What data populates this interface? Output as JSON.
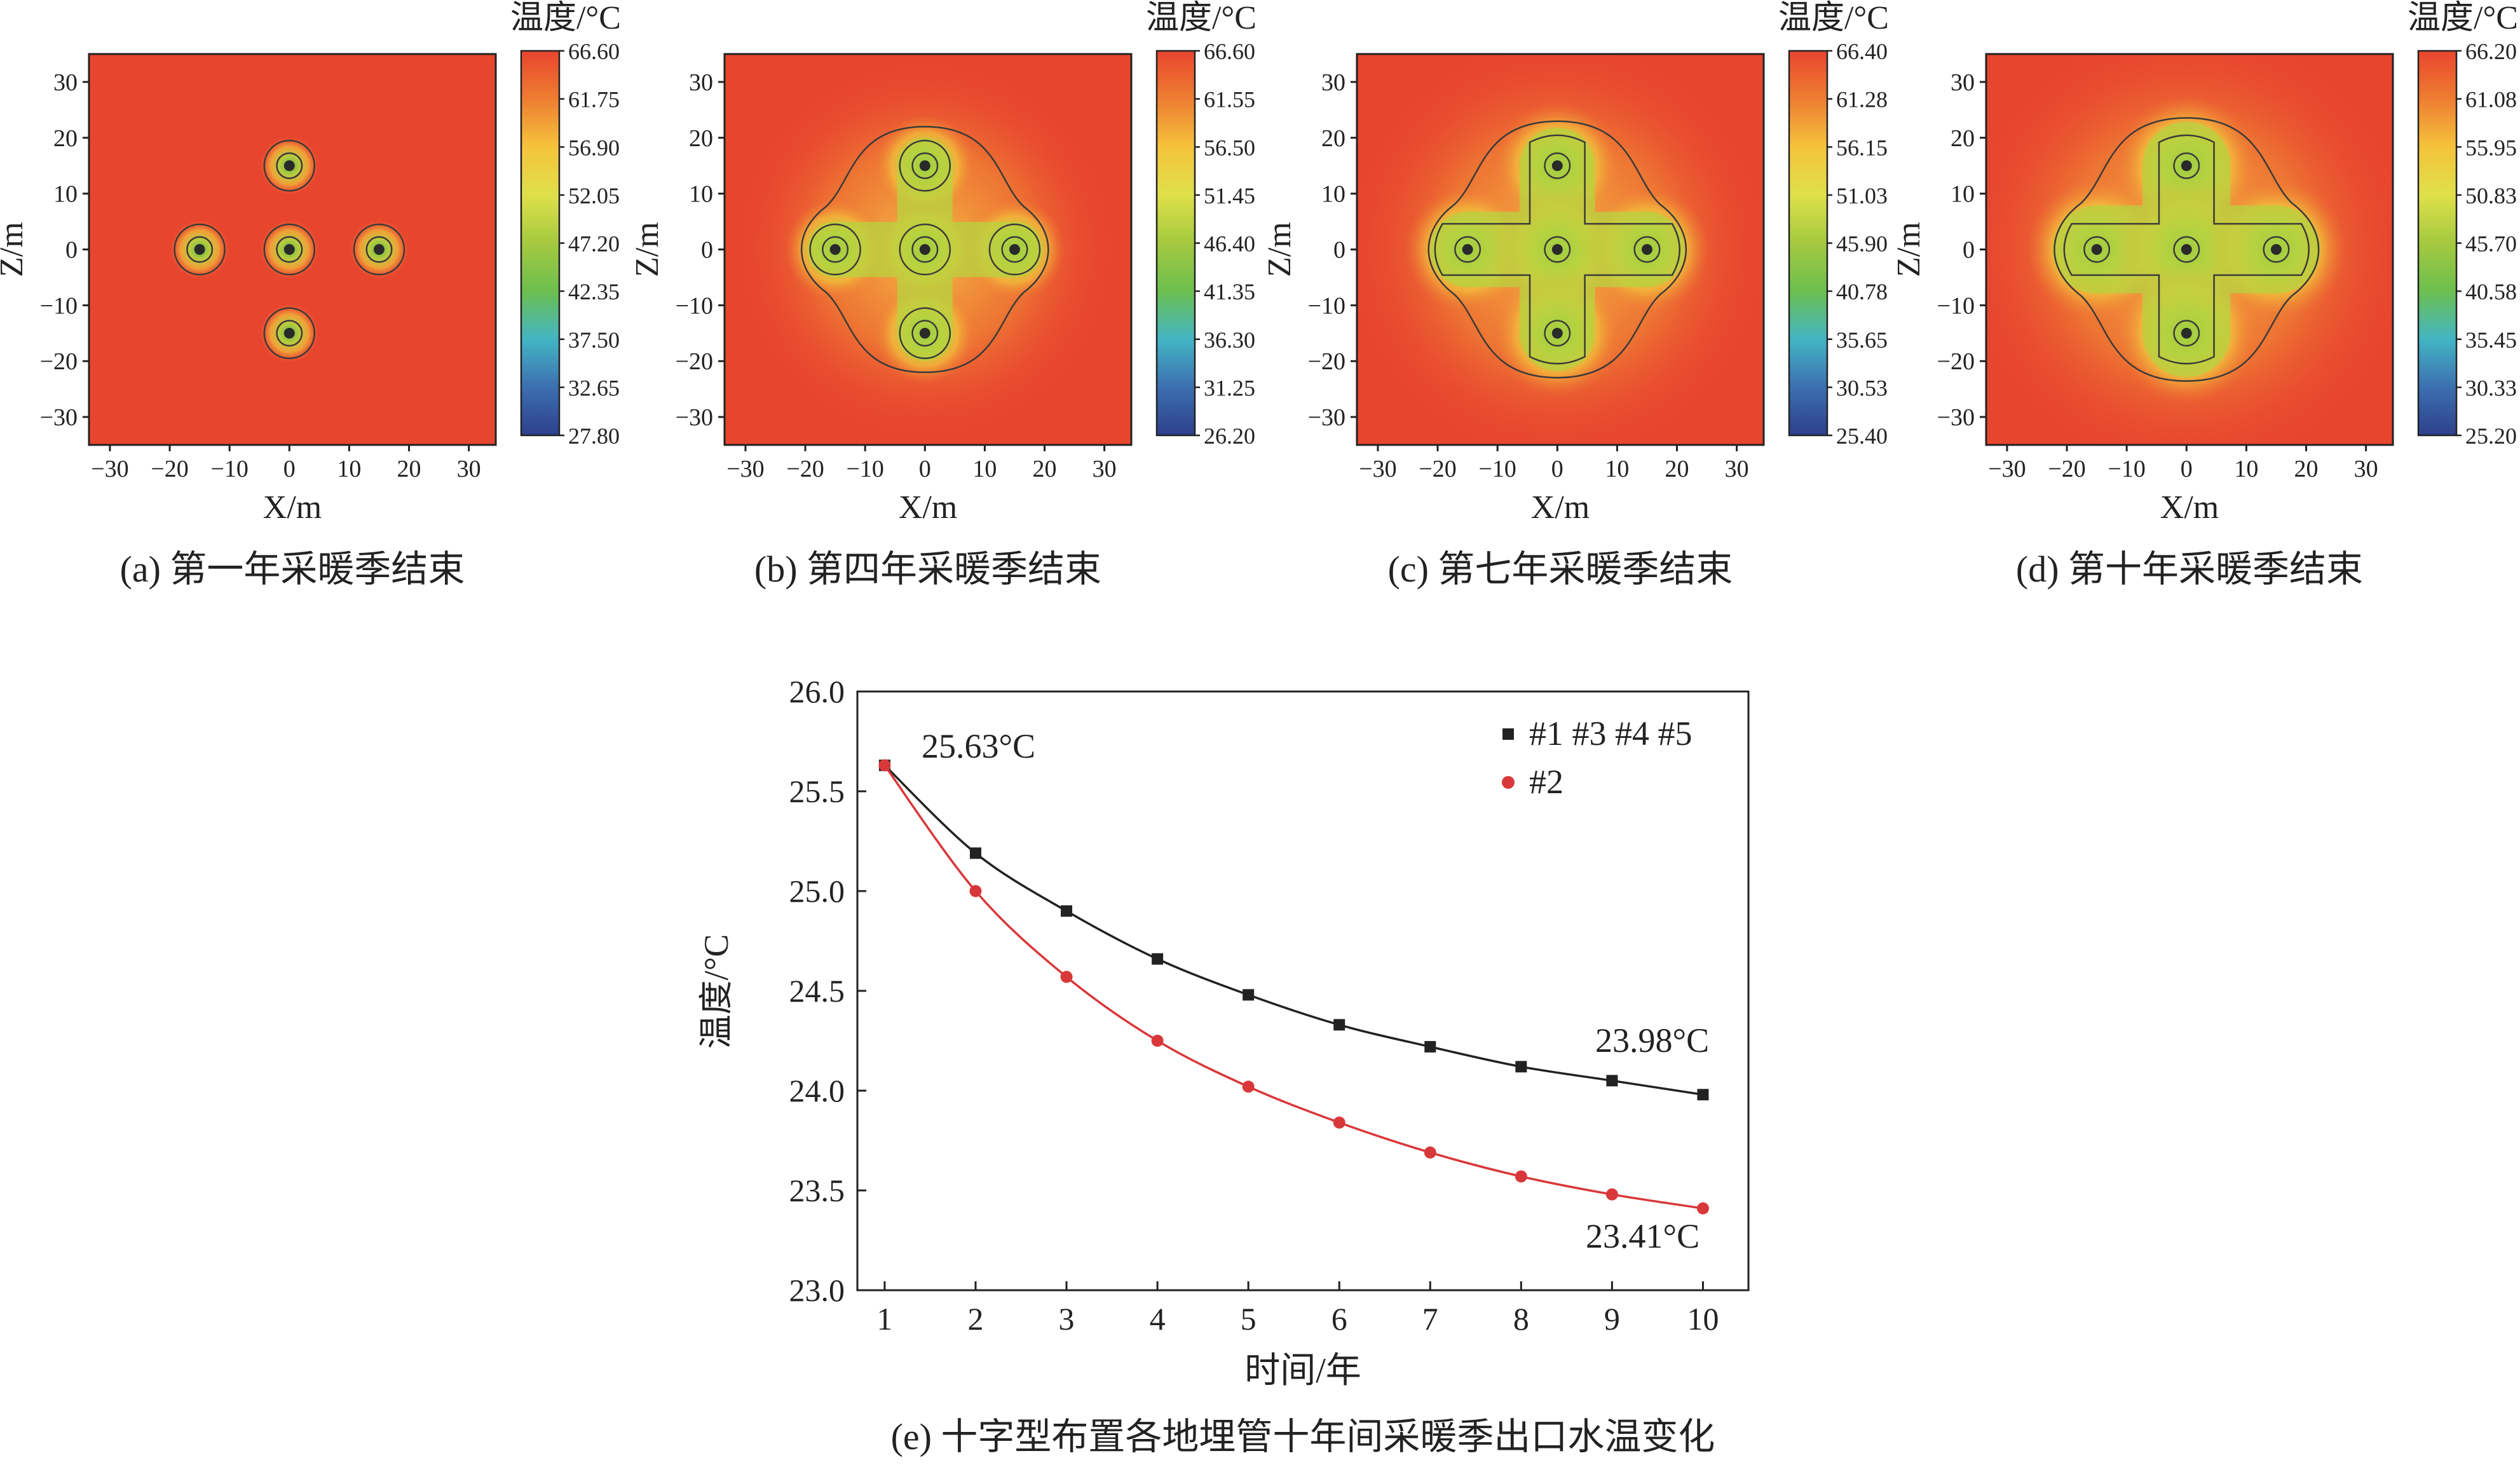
{
  "contour_panels": [
    {
      "caption": "(a) 第一年采暖季结束",
      "colorbar_title": "温度/°C",
      "colorbar_ticks": [
        "66.60",
        "61.75",
        "56.90",
        "52.05",
        "47.20",
        "42.35",
        "37.50",
        "32.65",
        "27.80"
      ],
      "xlabel": "X/m",
      "ylabel": "Z/m",
      "x_ticks": [
        "−30",
        "−20",
        "−10",
        "0",
        "10",
        "20",
        "30"
      ],
      "y_ticks": [
        "30",
        "20",
        "10",
        "0",
        "−10",
        "−20",
        "−30"
      ],
      "spread": 1.5,
      "envelope": 0
    },
    {
      "caption": "(b) 第四年采暖季结束",
      "colorbar_title": "温度/°C",
      "colorbar_ticks": [
        "66.60",
        "61.55",
        "56.50",
        "51.45",
        "46.40",
        "41.35",
        "36.30",
        "31.25",
        "26.20"
      ],
      "xlabel": "X/m",
      "ylabel": "Z/m",
      "x_ticks": [
        "−30",
        "−20",
        "−10",
        "0",
        "10",
        "20",
        "30"
      ],
      "y_ticks": [
        "30",
        "20",
        "10",
        "0",
        "−10",
        "−20",
        "−30"
      ],
      "spread": 4.4,
      "envelope": 1
    },
    {
      "caption": "(c) 第七年采暖季结束",
      "colorbar_title": "温度/°C",
      "colorbar_ticks": [
        "66.40",
        "61.28",
        "56.15",
        "51.03",
        "45.90",
        "40.78",
        "35.65",
        "30.53",
        "25.40"
      ],
      "xlabel": "X/m",
      "ylabel": "Z/m",
      "x_ticks": [
        "−30",
        "−20",
        "−10",
        "0",
        "10",
        "20",
        "30"
      ],
      "y_ticks": [
        "30",
        "20",
        "10",
        "0",
        "−10",
        "−20",
        "−30"
      ],
      "spread": 6.0,
      "envelope": 1
    },
    {
      "caption": "(d) 第十年采暖季结束",
      "colorbar_title": "温度/°C",
      "colorbar_ticks": [
        "66.20",
        "61.08",
        "55.95",
        "50.83",
        "45.70",
        "40.58",
        "35.45",
        "30.33",
        "25.20"
      ],
      "xlabel": "X/m",
      "ylabel": "Z/m",
      "x_ticks": [
        "−30",
        "−20",
        "−10",
        "0",
        "10",
        "20",
        "30"
      ],
      "y_ticks": [
        "30",
        "20",
        "10",
        "0",
        "−10",
        "−20",
        "−30"
      ],
      "spread": 7.0,
      "envelope": 1
    }
  ],
  "boreholes": [
    {
      "x": 0,
      "z": 15
    },
    {
      "x": -15,
      "z": 0
    },
    {
      "x": 0,
      "z": 0
    },
    {
      "x": 15,
      "z": 0
    },
    {
      "x": 0,
      "z": -15
    }
  ],
  "colormap": [
    "#2e3f8c",
    "#3c6fb0",
    "#43b5c4",
    "#6cbf4f",
    "#a5c93f",
    "#dfe04a",
    "#f5c33b",
    "#ee7d31",
    "#e8452f"
  ],
  "chart_data": {
    "type": "line",
    "caption": "(e) 十字型布置各地埋管十年间采暖季出口水温变化",
    "xlabel": "时间/年",
    "ylabel": "温度/°C",
    "x": [
      1,
      2,
      3,
      4,
      5,
      6,
      7,
      8,
      9,
      10
    ],
    "xlim": [
      0.7,
      10.5
    ],
    "ylim": [
      23.0,
      26.0
    ],
    "x_ticks": [
      "1",
      "2",
      "3",
      "4",
      "5",
      "6",
      "7",
      "8",
      "9",
      "10"
    ],
    "y_ticks": [
      "26.0",
      "25.5",
      "25.0",
      "24.5",
      "24.0",
      "23.5",
      "23.0"
    ],
    "y_tick_values": [
      26.0,
      25.5,
      25.0,
      24.5,
      24.0,
      23.5,
      23.0
    ],
    "series": [
      {
        "name": "#1 #3 #4 #5",
        "color": "#222222",
        "marker": "square",
        "values": [
          25.63,
          25.19,
          24.9,
          24.66,
          24.48,
          24.33,
          24.22,
          24.12,
          24.05,
          23.98
        ]
      },
      {
        "name": "#2",
        "color": "#d9383a",
        "marker": "circle",
        "values": [
          25.63,
          25.0,
          24.57,
          24.25,
          24.02,
          23.84,
          23.69,
          23.57,
          23.48,
          23.41
        ]
      }
    ],
    "annotations": [
      "25.63°C",
      "23.98°C",
      "23.41°C"
    ],
    "legend_position": "top-right"
  }
}
